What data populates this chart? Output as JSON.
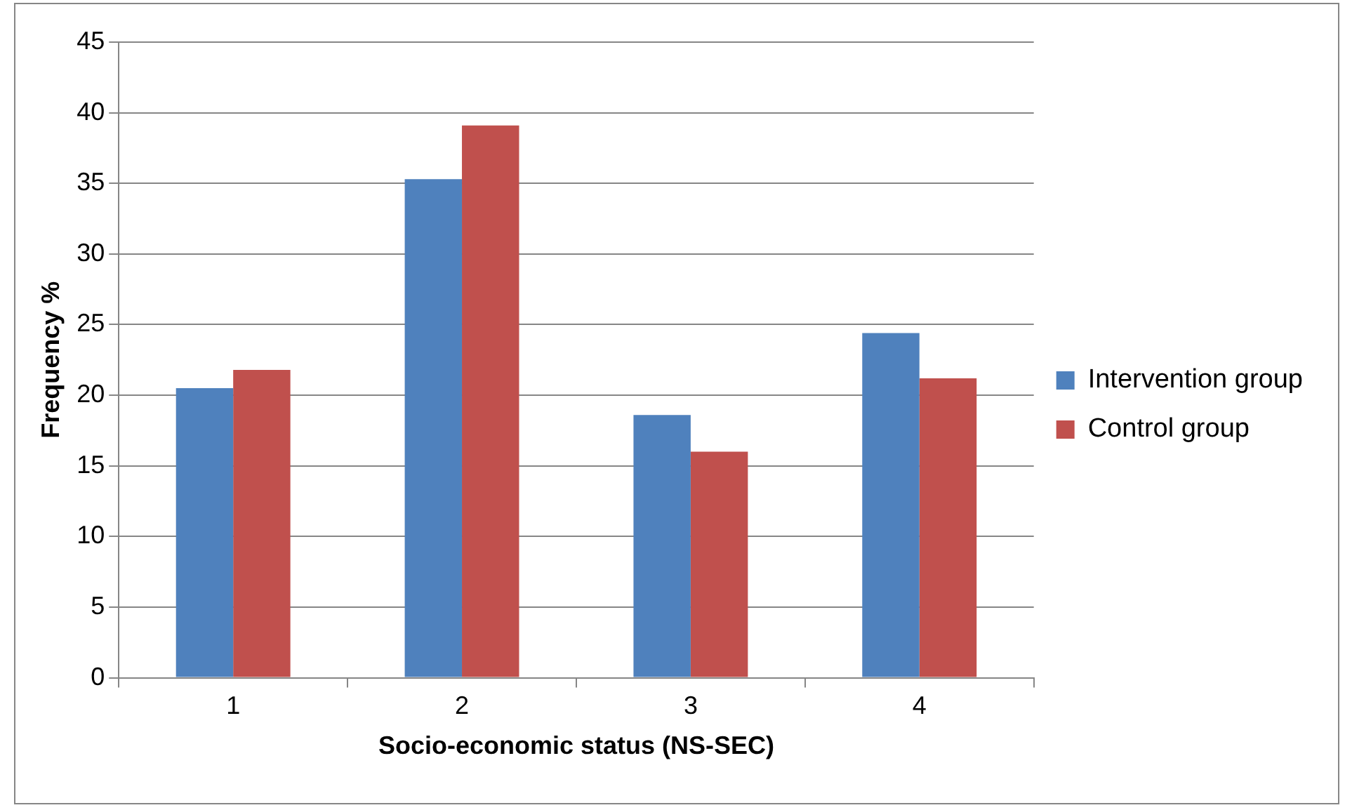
{
  "chart_data": {
    "type": "bar",
    "xlabel": "Socio-economic status (NS-SEC)",
    "ylabel": "Frequency %",
    "categories": [
      "1",
      "2",
      "3",
      "4"
    ],
    "series": [
      {
        "name": "Intervention group",
        "color": "#4f81bd",
        "values": [
          20.5,
          35.3,
          18.6,
          24.4
        ]
      },
      {
        "name": "Control group",
        "color": "#c0504d",
        "values": [
          21.8,
          39.1,
          16.0,
          21.2
        ]
      }
    ],
    "ylim": [
      0,
      45
    ],
    "yticks": [
      0,
      5,
      10,
      15,
      20,
      25,
      30,
      35,
      40,
      45
    ],
    "grid": "y",
    "legend": "right"
  }
}
